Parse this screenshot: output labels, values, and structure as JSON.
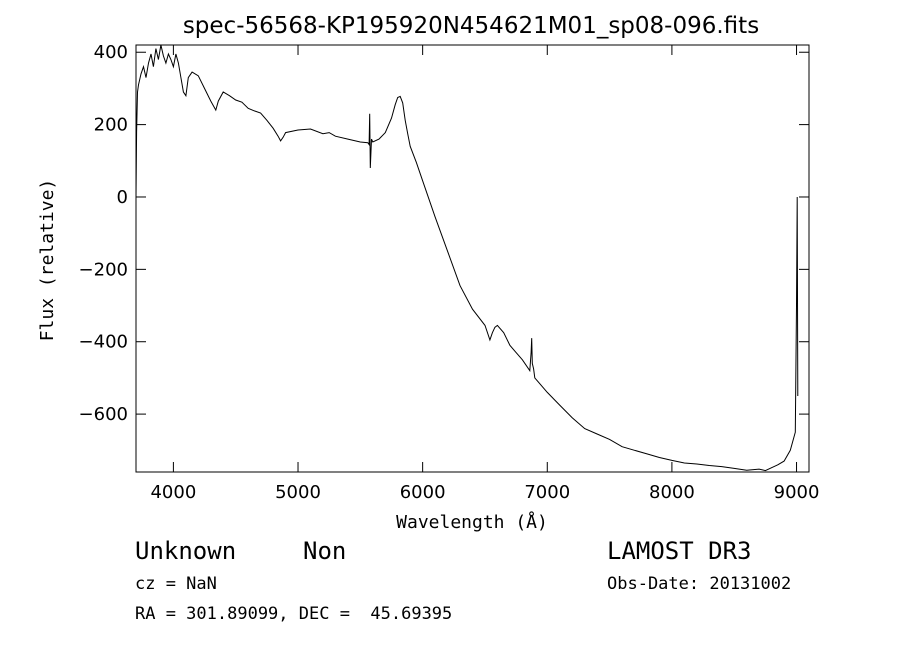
{
  "chart_data": {
    "type": "line",
    "title": "spec-56568-KP195920N454621M01_sp08-096.fits",
    "xlabel": "Wavelength (Å)",
    "ylabel": "Flux (relative)",
    "xlim": [
      3700,
      9100
    ],
    "ylim": [
      -760,
      420
    ],
    "xticks": [
      4000,
      5000,
      6000,
      7000,
      8000,
      9000
    ],
    "yticks": [
      -600,
      -400,
      -200,
      0,
      200,
      400
    ],
    "xtick_labels": [
      "4000",
      "5000",
      "6000",
      "7000",
      "8000",
      "9000"
    ],
    "ytick_labels": [
      "−600",
      "−400",
      "−200",
      "0",
      "200",
      "400"
    ],
    "grid": false,
    "line_color": "#000000",
    "series": [
      {
        "x": [
          3700,
          3705,
          3712,
          3720,
          3740,
          3760,
          3780,
          3800,
          3820,
          3840,
          3860,
          3880,
          3900,
          3920,
          3940,
          3960,
          3980,
          4000,
          4020,
          4040,
          4060,
          4080,
          4100,
          4120,
          4150,
          4200,
          4250,
          4300,
          4340,
          4360,
          4400,
          4450,
          4500,
          4550,
          4600,
          4650,
          4700,
          4750,
          4800,
          4840,
          4860,
          4880,
          4900,
          5000,
          5100,
          5200,
          5250,
          5300,
          5400,
          5500,
          5560,
          5570,
          5575,
          5580,
          5590,
          5600,
          5650,
          5700,
          5750,
          5780,
          5800,
          5820,
          5840,
          5860,
          5880,
          5900,
          5950,
          6000,
          6100,
          6200,
          6300,
          6400,
          6500,
          6540,
          6560,
          6580,
          6600,
          6650,
          6700,
          6750,
          6800,
          6860,
          6870,
          6875,
          6880,
          6890,
          6900,
          7000,
          7100,
          7200,
          7300,
          7400,
          7500,
          7600,
          7700,
          7800,
          7900,
          8000,
          8100,
          8200,
          8300,
          8400,
          8500,
          8600,
          8700,
          8750,
          8800,
          8850,
          8900,
          8950,
          8990,
          9000,
          9005,
          9010
        ],
        "y": [
          0,
          180,
          290,
          310,
          340,
          360,
          330,
          370,
          395,
          360,
          410,
          380,
          420,
          390,
          370,
          395,
          380,
          360,
          395,
          370,
          330,
          290,
          280,
          330,
          345,
          335,
          300,
          265,
          240,
          265,
          290,
          280,
          268,
          262,
          245,
          238,
          232,
          212,
          190,
          168,
          155,
          165,
          178,
          185,
          188,
          175,
          178,
          168,
          160,
          152,
          150,
          145,
          230,
          80,
          160,
          152,
          160,
          178,
          218,
          255,
          275,
          278,
          260,
          212,
          175,
          140,
          95,
          45,
          -55,
          -150,
          -245,
          -310,
          -355,
          -395,
          -375,
          -360,
          -355,
          -375,
          -410,
          -430,
          -450,
          -480,
          -430,
          -390,
          -460,
          -475,
          -500,
          -540,
          -575,
          -610,
          -640,
          -655,
          -670,
          -690,
          -700,
          -710,
          -720,
          -728,
          -735,
          -738,
          -742,
          -745,
          -750,
          -755,
          -752,
          -756,
          -748,
          -740,
          -730,
          -700,
          -650,
          -300,
          0,
          -550
        ]
      }
    ]
  },
  "info": {
    "object_class": "Unknown",
    "object_subclass": "Non",
    "survey": "LAMOST DR3",
    "cz": "cz = NaN",
    "obs_date": "Obs-Date: 20131002",
    "radec": "RA = 301.89099, DEC =  45.69395"
  }
}
